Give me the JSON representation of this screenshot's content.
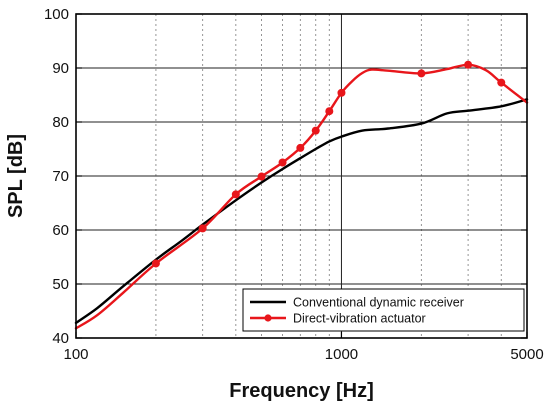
{
  "chart_data": {
    "type": "line",
    "xscale": "log",
    "xlim": [
      100,
      5000
    ],
    "ylim": [
      40,
      100
    ],
    "xlabel": "Frequency [Hz]",
    "ylabel": "SPL [dB]",
    "x_ticks": [
      100,
      1000,
      5000
    ],
    "x_tick_labels": [
      "100",
      "1000",
      "5000"
    ],
    "y_ticks": [
      40,
      50,
      60,
      70,
      80,
      90,
      100
    ],
    "y_tick_labels": [
      "40",
      "50",
      "60",
      "70",
      "80",
      "90",
      "100"
    ],
    "grid": true,
    "legend_position": "bottom-right",
    "series": [
      {
        "name": "Conventional dynamic receiver",
        "color": "#000000",
        "markers": false,
        "x": [
          100,
          120,
          150,
          200,
          250,
          300,
          400,
          500,
          600,
          700,
          800,
          900,
          1000,
          1200,
          1500,
          2000,
          2500,
          3000,
          4000,
          5000
        ],
        "y": [
          42.8,
          45.5,
          49.5,
          54.5,
          58,
          61,
          65.5,
          68.8,
          71.3,
          73.3,
          75,
          76.4,
          77.3,
          78.4,
          78.8,
          79.7,
          81.6,
          82.1,
          82.9,
          84.2
        ]
      },
      {
        "name": "Direct-vibration actuator",
        "color": "#e8161b",
        "markers": true,
        "x": [
          100,
          120,
          150,
          200,
          300,
          400,
          500,
          600,
          700,
          800,
          900,
          1000,
          1100,
          1200,
          1300,
          1500,
          2000,
          2500,
          3000,
          3500,
          4000,
          5000
        ],
        "y": [
          41.8,
          44.2,
          48.3,
          53.8,
          60.3,
          66.6,
          69.9,
          72.5,
          75.2,
          78.4,
          82,
          85.4,
          87.6,
          89.1,
          89.7,
          89.5,
          89,
          89.8,
          90.6,
          89.6,
          87.3,
          83.6
        ],
        "marker_x": [
          200,
          300,
          400,
          500,
          600,
          700,
          800,
          900,
          1000,
          2000,
          3000,
          4000
        ],
        "marker_y": [
          53.8,
          60.3,
          66.6,
          69.9,
          72.5,
          75.2,
          78.4,
          82,
          85.4,
          89,
          90.6,
          87.3
        ]
      }
    ]
  }
}
